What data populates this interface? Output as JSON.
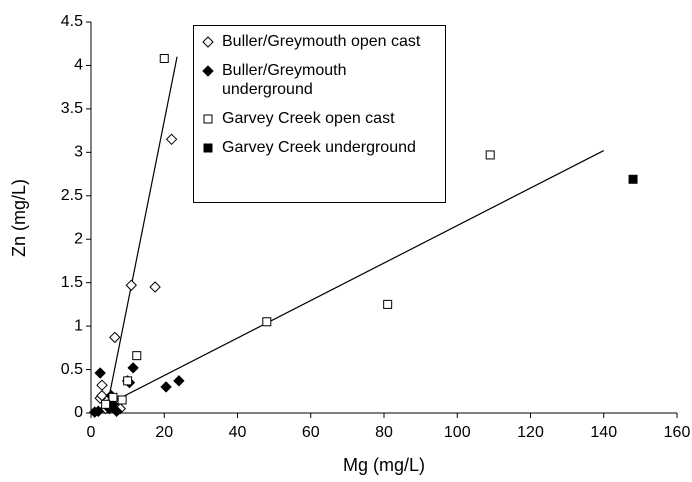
{
  "chart_data": {
    "type": "scatter",
    "x_label": "Mg (mg/L)",
    "y_label": "Zn (mg/L)",
    "xlim": [
      0,
      160
    ],
    "xticks": [
      0,
      20,
      40,
      60,
      80,
      100,
      120,
      140,
      160
    ],
    "ylim": [
      0,
      4.5
    ],
    "yticks": [
      0,
      0.5,
      1,
      1.5,
      2,
      2.5,
      3,
      3.5,
      4,
      4.5
    ],
    "legend": "top-center",
    "series": [
      {
        "name": "Buller/Greymouth open cast",
        "color": "#000000",
        "marker": "diamond",
        "filled": false,
        "x": [
          22,
          11,
          17.5,
          6.5,
          3,
          2.5,
          3,
          5,
          6,
          7,
          8,
          4
        ],
        "values": [
          3.15,
          1.47,
          1.45,
          0.87,
          0.32,
          0.17,
          0.2,
          0.1,
          0.15,
          0.12,
          0.05,
          0.05
        ]
      },
      {
        "name": "Buller/Greymouth underground",
        "color": "#000000",
        "marker": "diamond",
        "filled": true,
        "x": [
          2.5,
          11.5,
          10,
          24,
          20.5,
          5.5,
          6,
          1,
          2,
          5,
          7,
          10.5
        ],
        "values": [
          0.46,
          0.52,
          0.37,
          0.37,
          0.3,
          0.2,
          0.1,
          0.01,
          0.02,
          0.05,
          0.02,
          0.35
        ]
      },
      {
        "name": "Garvey Creek open cast",
        "color": "#000000",
        "marker": "square",
        "filled": false,
        "x": [
          20,
          109,
          81,
          48,
          12.5,
          10,
          8.5,
          6,
          4
        ],
        "values": [
          4.08,
          2.97,
          1.25,
          1.05,
          0.66,
          0.37,
          0.15,
          0.18,
          0.1
        ]
      },
      {
        "name": "Garvey Creek underground",
        "color": "#000000",
        "marker": "square",
        "filled": true,
        "x": [
          148
        ],
        "values": [
          2.69
        ]
      }
    ],
    "trendlines": [
      {
        "x": [
          5,
          23.5
        ],
        "y": [
          0.2,
          4.1
        ]
      },
      {
        "x": [
          0,
          140
        ],
        "y": [
          0,
          3.02
        ]
      }
    ]
  }
}
